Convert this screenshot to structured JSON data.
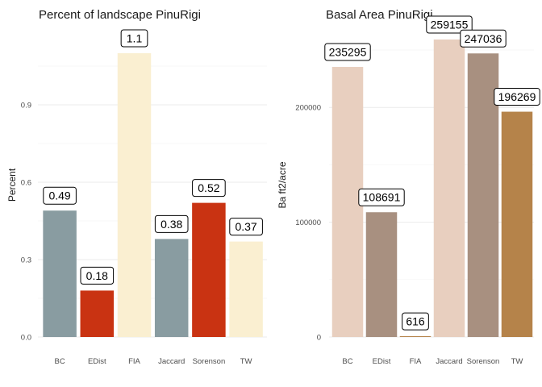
{
  "chart_data": [
    {
      "type": "bar",
      "title": "Percent of landscape  PinuRigi",
      "xlabel": "",
      "ylabel": "Percent",
      "categories": [
        "BC",
        "EDist",
        "FIA",
        "Jaccard",
        "Sorenson",
        "TW"
      ],
      "values": [
        0.49,
        0.18,
        1.1,
        0.38,
        0.52,
        0.37
      ],
      "labels": [
        "0.49",
        "0.18",
        "1.1",
        "0.38",
        "0.52",
        "0.37"
      ],
      "colors": [
        "#899ca1",
        "#c93312",
        "#faefd1",
        "#899ca1",
        "#c93312",
        "#faefd1"
      ],
      "ylim": [
        0,
        1.1
      ],
      "yticks": [
        0.0,
        0.3,
        0.6,
        0.9
      ],
      "ytick_labels": [
        "0.0",
        "0.3",
        "0.6",
        "0.9"
      ],
      "grid": true,
      "legend": "none"
    },
    {
      "type": "bar",
      "title": "Basal Area  PinuRigi",
      "xlabel": "",
      "ylabel": "Ba ft2/acre",
      "categories": [
        "BC",
        "EDist",
        "FIA",
        "Jaccard",
        "Sorenson",
        "TW"
      ],
      "values": [
        235295,
        108691,
        616,
        259155,
        247036,
        196269
      ],
      "labels": [
        "235295",
        "108691",
        "616",
        "259155",
        "247036",
        "196269"
      ],
      "colors": [
        "#e8cfbf",
        "#a89080",
        "#b5834a",
        "#e8cfbf",
        "#a89080",
        "#b5834a"
      ],
      "ylim": [
        0,
        259155
      ],
      "yticks": [
        0,
        100000,
        200000
      ],
      "ytick_labels": [
        "0",
        "100000",
        "200000"
      ],
      "grid": true,
      "legend": "none"
    }
  ]
}
